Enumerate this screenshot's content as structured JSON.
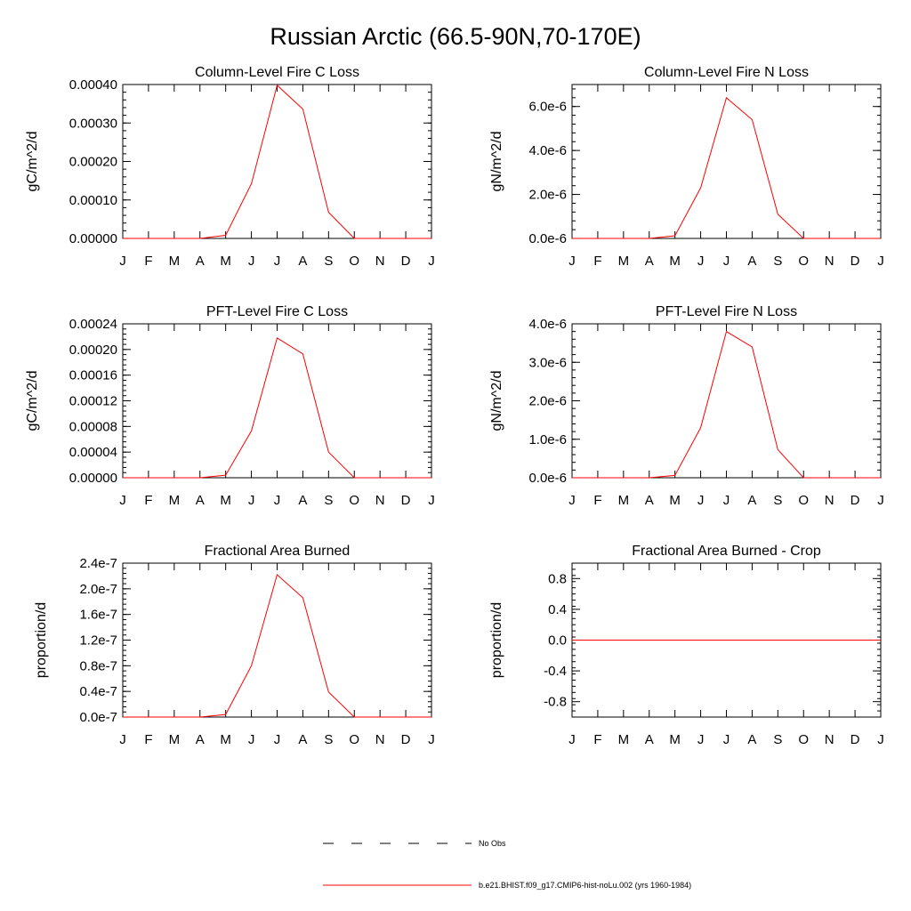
{
  "figure": {
    "title": "Russian Arctic (66.5-90N,70-170E)",
    "line_color": "#ff0000",
    "obs_color": "#000000"
  },
  "chart_data": [
    {
      "type": "line",
      "title": "Column-Level Fire C Loss",
      "xlabel": "",
      "ylabel": "gC/m^2/d",
      "categories": [
        "J",
        "F",
        "M",
        "A",
        "M",
        "J",
        "J",
        "A",
        "S",
        "O",
        "N",
        "D",
        "J"
      ],
      "ylim": [
        0,
        0.0004
      ],
      "yticks": [
        0,
        0.0001,
        0.0002,
        0.0003,
        0.0004
      ],
      "ytick_labels": [
        "0.00000",
        "0.00010",
        "0.00020",
        "0.00030",
        "0.00040"
      ],
      "series": [
        {
          "values": [
            0,
            0,
            0,
            0,
            8e-06,
            0.000142,
            0.000398,
            0.000336,
            6.8e-05,
            0,
            0,
            0,
            0
          ]
        }
      ]
    },
    {
      "type": "line",
      "title": "Column-Level Fire N Loss",
      "xlabel": "",
      "ylabel": "gN/m^2/d",
      "categories": [
        "J",
        "F",
        "M",
        "A",
        "M",
        "J",
        "J",
        "A",
        "S",
        "O",
        "N",
        "D",
        "J"
      ],
      "ylim": [
        0,
        7e-06
      ],
      "yticks": [
        0,
        2e-06,
        4e-06,
        6e-06
      ],
      "ytick_labels": [
        "0.0e-6",
        "2.0e-6",
        "4.0e-6",
        "6.0e-6"
      ],
      "series": [
        {
          "values": [
            0,
            0,
            0,
            0,
            1.2e-07,
            2.3e-06,
            6.4e-06,
            5.4e-06,
            1.1e-06,
            0,
            0,
            0,
            0
          ]
        }
      ]
    },
    {
      "type": "line",
      "title": "PFT-Level Fire C Loss",
      "xlabel": "",
      "ylabel": "gC/m^2/d",
      "categories": [
        "J",
        "F",
        "M",
        "A",
        "M",
        "J",
        "J",
        "A",
        "S",
        "O",
        "N",
        "D",
        "J"
      ],
      "ylim": [
        0,
        0.00024
      ],
      "yticks": [
        0,
        4e-05,
        8e-05,
        0.00012,
        0.00016,
        0.0002,
        0.00024
      ],
      "ytick_labels": [
        "0.00000",
        "0.00004",
        "0.00008",
        "0.00012",
        "0.00016",
        "0.00020",
        "0.00024"
      ],
      "series": [
        {
          "values": [
            0,
            0,
            0,
            0,
            4e-06,
            7.3e-05,
            0.000218,
            0.000193,
            4e-05,
            0,
            0,
            0,
            0
          ]
        }
      ]
    },
    {
      "type": "line",
      "title": "PFT-Level Fire N Loss",
      "xlabel": "",
      "ylabel": "gN/m^2/d",
      "categories": [
        "J",
        "F",
        "M",
        "A",
        "M",
        "J",
        "J",
        "A",
        "S",
        "O",
        "N",
        "D",
        "J"
      ],
      "ylim": [
        0,
        4e-06
      ],
      "yticks": [
        0,
        1e-06,
        2e-06,
        3e-06,
        4e-06
      ],
      "ytick_labels": [
        "0.0e-6",
        "1.0e-6",
        "2.0e-6",
        "3.0e-6",
        "4.0e-6"
      ],
      "series": [
        {
          "values": [
            0,
            0,
            0,
            0,
            6e-08,
            1.3e-06,
            3.8e-06,
            3.4e-06,
            7.3e-07,
            0,
            0,
            0,
            0
          ]
        }
      ]
    },
    {
      "type": "line",
      "title": "Fractional Area Burned",
      "xlabel": "",
      "ylabel": "proportion/d",
      "categories": [
        "J",
        "F",
        "M",
        "A",
        "M",
        "J",
        "J",
        "A",
        "S",
        "O",
        "N",
        "D",
        "J"
      ],
      "ylim": [
        0,
        2.4e-07
      ],
      "yticks": [
        0,
        4e-08,
        8e-08,
        1.2e-07,
        1.6e-07,
        2e-07,
        2.4e-07
      ],
      "ytick_labels": [
        "0.0e-7",
        "0.4e-7",
        "0.8e-7",
        "1.2e-7",
        "1.6e-7",
        "2.0e-7",
        "2.4e-7"
      ],
      "series": [
        {
          "values": [
            0,
            0,
            0,
            0,
            4e-09,
            8e-08,
            2.22e-07,
            1.86e-07,
            3.9e-08,
            0,
            0,
            0,
            0
          ]
        }
      ]
    },
    {
      "type": "line",
      "title": "Fractional Area Burned - Crop",
      "xlabel": "",
      "ylabel": "proportion/d",
      "categories": [
        "J",
        "F",
        "M",
        "A",
        "M",
        "J",
        "J",
        "A",
        "S",
        "O",
        "N",
        "D",
        "J"
      ],
      "ylim": [
        -1,
        1
      ],
      "yticks": [
        -0.8,
        -0.4,
        0,
        0.4,
        0.8
      ],
      "ytick_labels": [
        "-0.8",
        "-0.4",
        "0.0",
        "0.4",
        "0.8"
      ],
      "series": [
        {
          "values": [
            0,
            0,
            0,
            0,
            0,
            0,
            0,
            0,
            0,
            0,
            0,
            0,
            0
          ]
        }
      ]
    }
  ],
  "legend": {
    "items": [
      {
        "label": "No Obs",
        "style": "dashed",
        "color": "#000000"
      },
      {
        "label": "b.e21.BHIST.f09_g17.CMIP6-hist-noLu.002 (yrs 1960-1984)",
        "style": "solid",
        "color": "#ff0000"
      }
    ]
  }
}
